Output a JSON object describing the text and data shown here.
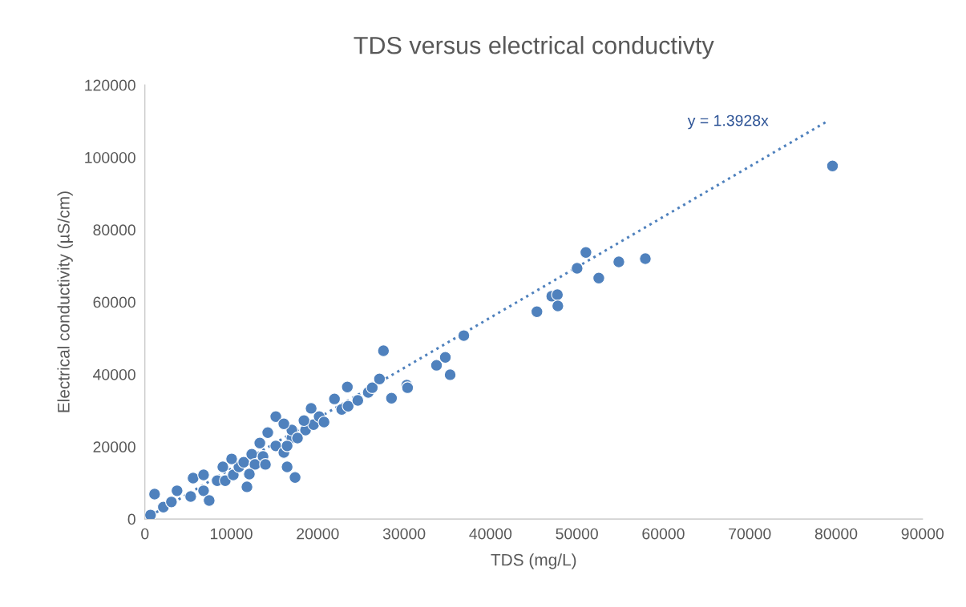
{
  "chart_data": {
    "type": "scatter",
    "title": "TDS versus electrical conductivty",
    "xlabel": "TDS (mg/L)",
    "ylabel": "Electrical conductivity (µS/cm)",
    "xlim": [
      0,
      90000
    ],
    "xticks": [
      0,
      10000,
      20000,
      30000,
      40000,
      50000,
      60000,
      70000,
      80000,
      90000
    ],
    "ylim": [
      0,
      120000
    ],
    "yticks": [
      0,
      20000,
      40000,
      60000,
      80000,
      100000,
      120000
    ],
    "grid": false,
    "legend": false,
    "marker": "circle",
    "annotations": [
      "y = 1.3928x"
    ],
    "series": [
      {
        "color": "#4f81bd",
        "x": [
          650,
          2140,
          3070,
          3720,
          5300,
          5580,
          6790,
          6790,
          8370,
          9020,
          9300,
          10230,
          10880,
          11440,
          12370,
          12740,
          13300,
          13670,
          15150,
          17010,
          17010,
          18590,
          19520,
          20170,
          20730,
          1120,
          7440,
          10040,
          11810,
          12090,
          13950,
          14220,
          15150,
          16080,
          16080,
          16460,
          16460,
          17380,
          17660,
          18410,
          19240,
          21940,
          22780,
          23430,
          23520,
          24640,
          25850,
          26310,
          27150,
          27610,
          28540,
          30300,
          30400,
          33750,
          34770,
          35330,
          36910,
          45370,
          47090,
          47740,
          47790,
          50020,
          51040,
          52530,
          54850,
          57920,
          79580
        ],
        "values": [
          1100,
          3300,
          4700,
          7800,
          6200,
          11300,
          12200,
          7800,
          10600,
          14400,
          10600,
          12200,
          14400,
          15700,
          17900,
          15100,
          21000,
          17300,
          20200,
          22400,
          24600,
          24600,
          26100,
          28300,
          26800,
          6900,
          5100,
          16600,
          8900,
          12400,
          15100,
          23900,
          28300,
          26300,
          18400,
          20200,
          14400,
          11500,
          22400,
          27200,
          30600,
          33200,
          30300,
          36500,
          31200,
          32800,
          35000,
          36300,
          38700,
          46500,
          33400,
          37000,
          36300,
          42500,
          44700,
          39900,
          50700,
          57300,
          61600,
          62000,
          58900,
          69300,
          73700,
          66600,
          71100,
          72000,
          97600
        ]
      },
      {
        "type": "line",
        "color": "#4f81bd",
        "line_style": "dotted",
        "marker": "none",
        "x": [
          0,
          79000
        ],
        "values": [
          0,
          110000
        ]
      }
    ]
  }
}
